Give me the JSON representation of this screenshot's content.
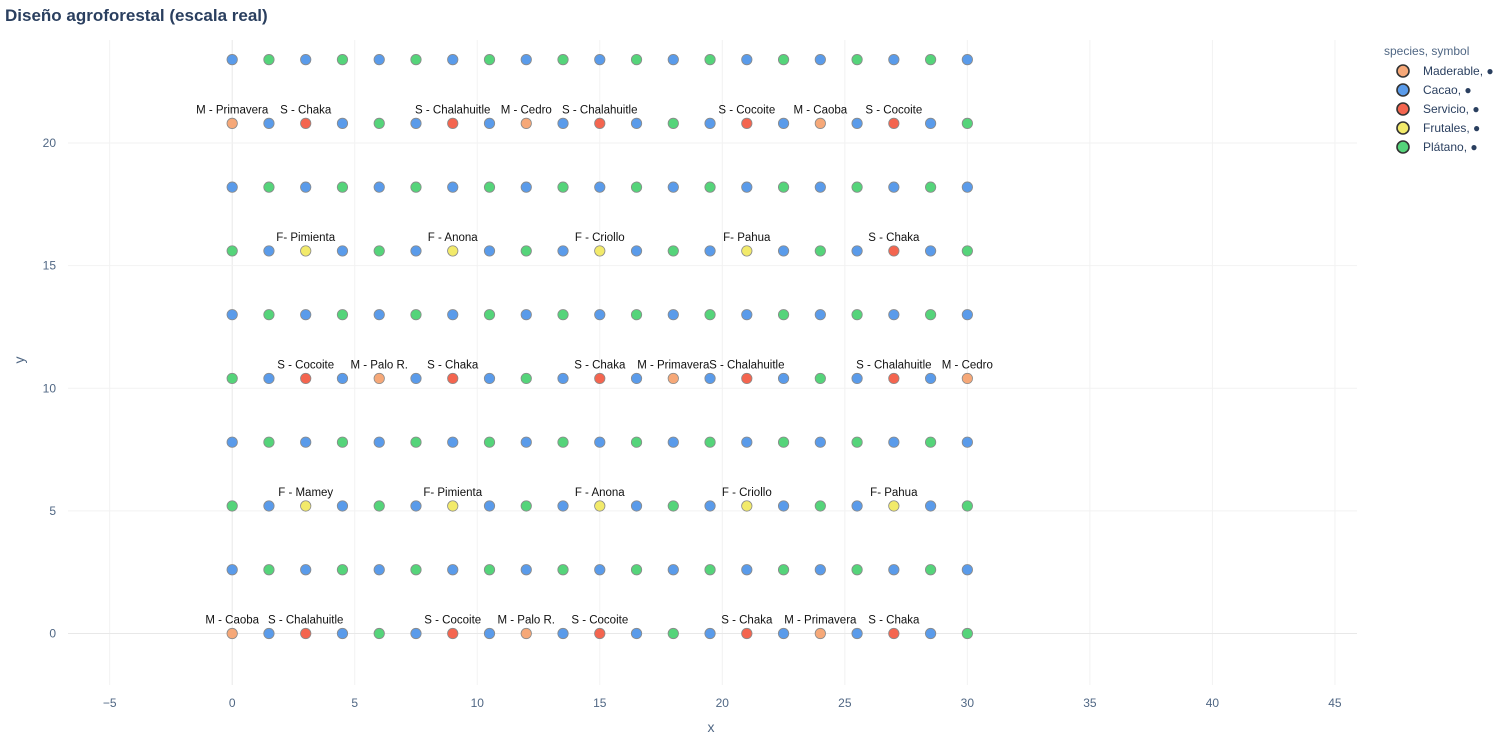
{
  "chart_data": {
    "type": "scatter",
    "title": "Diseño agroforestal (escala real)",
    "xlabel": "x",
    "ylabel": "y",
    "xlim": [
      -6.7,
      45.9
    ],
    "ylim": [
      -2.1,
      24.2
    ],
    "xticks": [
      -5,
      0,
      5,
      10,
      15,
      20,
      25,
      30,
      35,
      40,
      45
    ],
    "yticks": [
      0,
      5,
      10,
      15,
      20
    ],
    "grid": true,
    "legend": {
      "title": "species, symbol",
      "placement": "top-right"
    },
    "species": {
      "M": {
        "name": "Maderable, ●",
        "color": "#F6A878"
      },
      "C": {
        "name": "Cacao, ●",
        "color": "#5A9BEA"
      },
      "S": {
        "name": "Servicio, ●",
        "color": "#F4654F"
      },
      "F": {
        "name": "Frutales, ●",
        "color": "#F2EA6A"
      },
      "P": {
        "name": "Plátano, ●",
        "color": "#55D47A"
      }
    },
    "legend_order": [
      "M",
      "C",
      "S",
      "F",
      "P"
    ],
    "x": [
      0,
      1.5,
      3,
      4.5,
      6,
      7.5,
      9,
      10.5,
      12,
      13.5,
      15,
      16.5,
      18,
      19.5,
      21,
      22.5,
      24,
      25.5,
      27,
      28.5,
      30
    ],
    "rows": [
      {
        "y": 0,
        "species": [
          "M",
          "C",
          "S",
          "C",
          "P",
          "C",
          "S",
          "C",
          "M",
          "C",
          "S",
          "C",
          "P",
          "C",
          "S",
          "C",
          "M",
          "C",
          "S",
          "C",
          "P"
        ],
        "labels": [
          "M - Caoba",
          "",
          "S - Chalahuitle",
          "",
          "",
          "",
          "S - Cocoite",
          "",
          "M - Palo R.",
          "",
          "S - Cocoite",
          "",
          "",
          "",
          "S - Chaka",
          "",
          "M - Primavera",
          "",
          "S - Chaka",
          "",
          ""
        ]
      },
      {
        "y": 2.6,
        "species": [
          "C",
          "P",
          "C",
          "P",
          "C",
          "P",
          "C",
          "P",
          "C",
          "P",
          "C",
          "P",
          "C",
          "P",
          "C",
          "P",
          "C",
          "P",
          "C",
          "P",
          "C"
        ]
      },
      {
        "y": 5.2,
        "species": [
          "P",
          "C",
          "F",
          "C",
          "P",
          "C",
          "F",
          "C",
          "P",
          "C",
          "F",
          "C",
          "P",
          "C",
          "F",
          "C",
          "P",
          "C",
          "F",
          "C",
          "P"
        ],
        "labels": [
          "",
          "",
          "F - Mamey",
          "",
          "",
          "",
          "F- Pimienta",
          "",
          "",
          "",
          "F - Anona",
          "",
          "",
          "",
          "F - Criollo",
          "",
          "",
          "",
          "F- Pahua",
          "",
          ""
        ]
      },
      {
        "y": 7.8,
        "species": [
          "C",
          "P",
          "C",
          "P",
          "C",
          "P",
          "C",
          "P",
          "C",
          "P",
          "C",
          "P",
          "C",
          "P",
          "C",
          "P",
          "C",
          "P",
          "C",
          "P",
          "C"
        ]
      },
      {
        "y": 10.4,
        "species": [
          "P",
          "C",
          "S",
          "C",
          "M",
          "C",
          "S",
          "C",
          "P",
          "C",
          "S",
          "C",
          "M",
          "C",
          "S",
          "C",
          "P",
          "C",
          "S",
          "C",
          "M"
        ],
        "labels": [
          "",
          "",
          "S - Cocoite",
          "",
          "M - Palo R.",
          "",
          "S - Chaka",
          "",
          "",
          "",
          "S - Chaka",
          "",
          "M - Primavera",
          "",
          "S - Chalahuitle",
          "",
          "",
          "",
          "S - Chalahuitle",
          "",
          "M - Cedro"
        ]
      },
      {
        "y": 13,
        "species": [
          "C",
          "P",
          "C",
          "P",
          "C",
          "P",
          "C",
          "P",
          "C",
          "P",
          "C",
          "P",
          "C",
          "P",
          "C",
          "P",
          "C",
          "P",
          "C",
          "P",
          "C"
        ]
      },
      {
        "y": 15.6,
        "species": [
          "P",
          "C",
          "F",
          "C",
          "P",
          "C",
          "F",
          "C",
          "P",
          "C",
          "F",
          "C",
          "P",
          "C",
          "F",
          "C",
          "P",
          "C",
          "S",
          "C",
          "P"
        ],
        "labels": [
          "",
          "",
          "F- Pimienta",
          "",
          "",
          "",
          "F - Anona",
          "",
          "",
          "",
          "F - Criollo",
          "",
          "",
          "",
          "F- Pahua",
          "",
          "",
          "",
          "S - Chaka",
          "",
          ""
        ]
      },
      {
        "y": 18.2,
        "species": [
          "C",
          "P",
          "C",
          "P",
          "C",
          "P",
          "C",
          "P",
          "C",
          "P",
          "C",
          "P",
          "C",
          "P",
          "C",
          "P",
          "C",
          "P",
          "C",
          "P",
          "C"
        ]
      },
      {
        "y": 20.8,
        "species": [
          "M",
          "C",
          "S",
          "C",
          "P",
          "C",
          "S",
          "C",
          "M",
          "C",
          "S",
          "C",
          "P",
          "C",
          "S",
          "C",
          "M",
          "C",
          "S",
          "C",
          "P"
        ],
        "labels": [
          "M - Primavera",
          "",
          "S - Chaka",
          "",
          "",
          "",
          "S - Chalahuitle",
          "",
          "M - Cedro",
          "",
          "S - Chalahuitle",
          "",
          "",
          "",
          "S - Cocoite",
          "",
          "M - Caoba",
          "",
          "S - Cocoite",
          "",
          ""
        ]
      },
      {
        "y": 23.4,
        "species": [
          "C",
          "P",
          "C",
          "P",
          "C",
          "P",
          "C",
          "P",
          "C",
          "P",
          "C",
          "P",
          "C",
          "P",
          "C",
          "P",
          "C",
          "P",
          "C",
          "P",
          "C"
        ]
      }
    ]
  }
}
